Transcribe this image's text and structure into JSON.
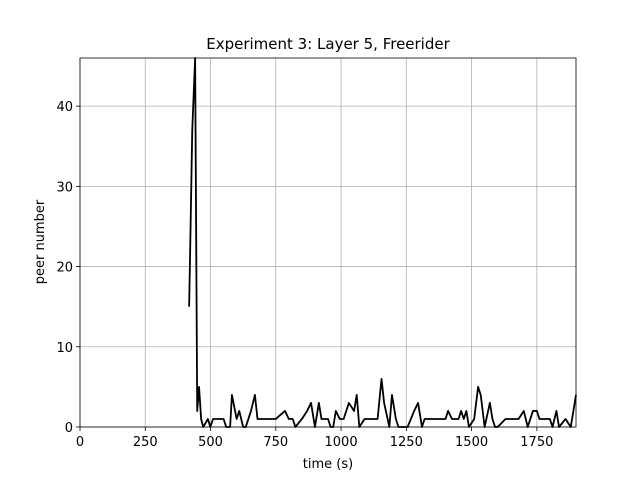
{
  "chart_data": {
    "type": "line",
    "title": "Experiment 3: Layer 5, Freerider",
    "x_label": "time (s)",
    "y_label": "peer number",
    "x": [
      418,
      422,
      430,
      441,
      449,
      456,
      464,
      472,
      490,
      499,
      510,
      530,
      550,
      560,
      575,
      582,
      600,
      610,
      625,
      635,
      655,
      670,
      680,
      700,
      750,
      785,
      800,
      815,
      825,
      850,
      870,
      885,
      900,
      915,
      925,
      950,
      960,
      970,
      980,
      995,
      1010,
      1030,
      1050,
      1060,
      1070,
      1090,
      1140,
      1155,
      1165,
      1185,
      1195,
      1210,
      1220,
      1255,
      1280,
      1295,
      1310,
      1320,
      1400,
      1410,
      1425,
      1450,
      1460,
      1470,
      1480,
      1490,
      1510,
      1525,
      1535,
      1550,
      1570,
      1580,
      1590,
      1600,
      1630,
      1680,
      1700,
      1715,
      1735,
      1750,
      1760,
      1800,
      1810,
      1825,
      1835,
      1860,
      1880,
      1900
    ],
    "series": [
      {
        "color": "#000000",
        "values": [
          15,
          22,
          37,
          46,
          2,
          5,
          1,
          0,
          1,
          0,
          1,
          1,
          1,
          0,
          0,
          4,
          1,
          2,
          0,
          0,
          2,
          4,
          1,
          1,
          1,
          2,
          1,
          1,
          0,
          1,
          2,
          3,
          0,
          3,
          1,
          1,
          0,
          0,
          2,
          1,
          1,
          3,
          2,
          4,
          0,
          1,
          1,
          6,
          3,
          0,
          4,
          1,
          0,
          0,
          2,
          3,
          0,
          1,
          1,
          2,
          1,
          1,
          2,
          1,
          2,
          0,
          1,
          5,
          4,
          0,
          3,
          1,
          0,
          0,
          1,
          1,
          2,
          0,
          2,
          2,
          1,
          1,
          0,
          2,
          0,
          1,
          0,
          4
        ]
      }
    ],
    "xlim": [
      0,
      1900
    ],
    "xticks": [
      0,
      250,
      500,
      750,
      1000,
      1250,
      1500,
      1750
    ],
    "ylim": [
      0,
      46
    ],
    "yticks": [
      0,
      10,
      20,
      30,
      40
    ],
    "grid": true
  }
}
